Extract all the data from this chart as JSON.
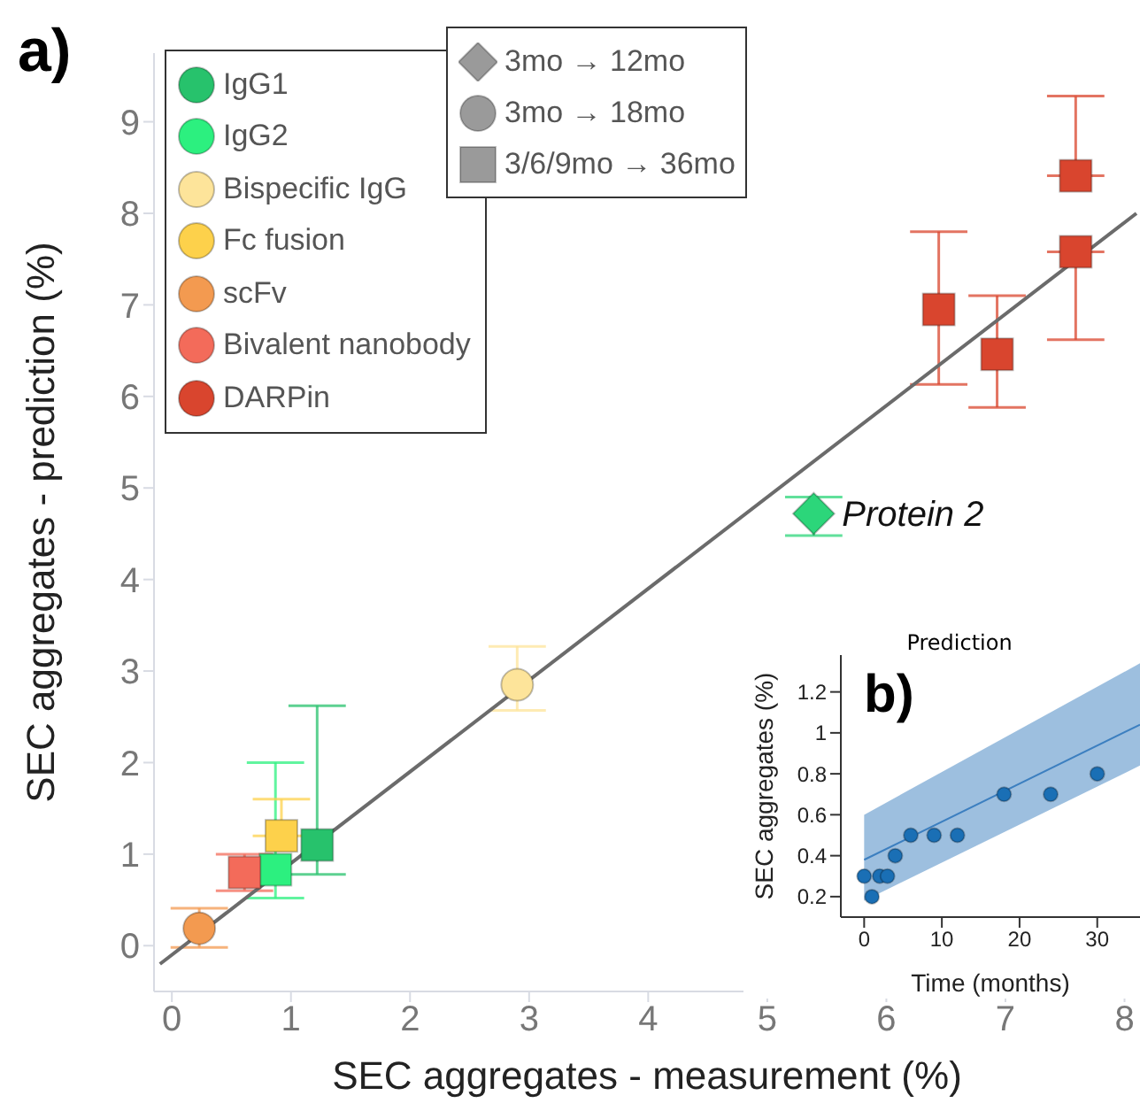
{
  "chart_data": [
    {
      "type": "scatter",
      "xlabel": "SEC aggregates - measurement (%)",
      "ylabel": "SEC aggregates - prediction (%)",
      "xlim": [
        -0.15,
        8.13
      ],
      "ylim": [
        -0.5,
        9.75
      ],
      "xticks": [
        0,
        1,
        2,
        3,
        4,
        5,
        6,
        7,
        8
      ],
      "yticks": [
        0,
        1,
        2,
        3,
        4,
        5,
        6,
        7,
        8,
        9
      ],
      "legend": "top left",
      "annotations": [
        "a)",
        "3mo → 12mo",
        "3mo → 18mo",
        "3/6/9mo → 36mo",
        {
          "text": "Protein 2",
          "x": 5.39,
          "y": 4.72
        }
      ],
      "series": [
        {
          "name": "IgG1",
          "color": "#27c26c",
          "marker": "square",
          "x": [
            1.22
          ],
          "values": [
            1.1
          ],
          "errors": [
            [
              0.78,
              2.62
            ]
          ]
        },
        {
          "name": "IgG2",
          "color": "#2cf07f",
          "marker": "square",
          "x": [
            0.87
          ],
          "values": [
            0.83
          ],
          "errors": [
            [
              0.52,
              2.0
            ]
          ]
        },
        {
          "name": "Bispecific IgG",
          "color": "#fde49a",
          "marker": "circle",
          "x": [
            2.9
          ],
          "values": [
            2.85
          ],
          "errors": [
            [
              2.57,
              3.27
            ]
          ]
        },
        {
          "name": "Fc fusion",
          "color": "#fdd14b",
          "marker": "square",
          "x": [
            0.92
          ],
          "values": [
            1.2
          ],
          "errors": [
            [
              1.2,
              1.6
            ]
          ]
        },
        {
          "name": "scFv",
          "color": "#f39a50",
          "marker": "circle",
          "x": [
            0.23
          ],
          "values": [
            0.19
          ],
          "errors": [
            [
              -0.02,
              0.41
            ]
          ]
        },
        {
          "name": "Bivalent nanobody",
          "color": "#f36b5a",
          "marker": "square",
          "x": [
            0.61
          ],
          "values": [
            0.8
          ],
          "errors": [
            [
              0.6,
              1.0
            ]
          ]
        },
        {
          "name": "DARPin",
          "color": "#d9452e",
          "marker": "square",
          "x": [
            6.44,
            6.93,
            7.59,
            7.59
          ],
          "values": [
            6.95,
            6.46,
            8.41,
            7.58
          ],
          "errors": [
            [
              6.13,
              7.8
            ],
            [
              5.88,
              7.1
            ],
            [
              8.41,
              9.28
            ],
            [
              6.62,
              7.58
            ]
          ]
        },
        {
          "color": "#2cd67a",
          "marker": "diamond",
          "x": [
            5.39
          ],
          "values": [
            4.72
          ],
          "errors": [
            [
              4.48,
              4.9
            ]
          ]
        },
        {
          "type": "line",
          "color": "#6b6b6b",
          "marker": "none",
          "x": [
            -0.1,
            8.1
          ],
          "values": [
            -0.2,
            8.0
          ]
        }
      ]
    },
    {
      "type": "scatter",
      "title": "Prediction",
      "xlabel": "Time (months)",
      "ylabel": "SEC aggregates (%)",
      "xlim": [
        -3,
        35.5
      ],
      "ylim": [
        0.1,
        1.38
      ],
      "xticks": [
        0,
        10,
        20,
        30
      ],
      "yticks": [
        0.2,
        0.4,
        0.6,
        0.8,
        1,
        1.2
      ],
      "annotations": [
        "b)"
      ],
      "series": [
        {
          "type": "line",
          "color": "#3c7fc0",
          "marker": "none",
          "x": [
            0,
            35.5
          ],
          "values": [
            0.38,
            1.04
          ],
          "lower": [
            0.18,
            0.84
          ],
          "upper": [
            0.6,
            1.34
          ]
        },
        {
          "color": "#1a6fb5",
          "marker": "circle",
          "x": [
            0,
            1,
            2,
            3,
            4,
            6
          ],
          "values": [
            0.3,
            0.2,
            0.3,
            0.3,
            0.4,
            0.5
          ]
        },
        {
          "color": "#1a6fb5",
          "marker": "circle",
          "x": [
            9,
            12,
            18,
            24,
            30
          ],
          "values": [
            0.5,
            0.5,
            0.7,
            0.7,
            0.8
          ]
        }
      ]
    }
  ]
}
